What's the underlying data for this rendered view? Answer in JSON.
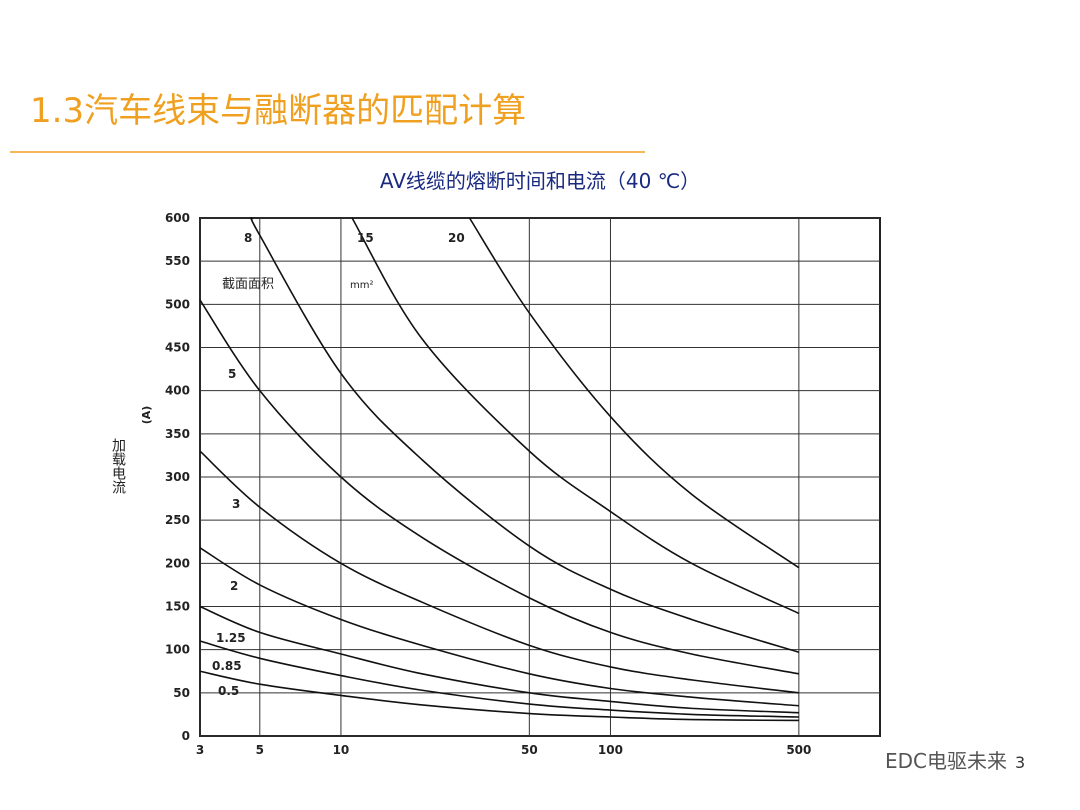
{
  "header": {
    "title": "1.3汽车线束与融断器的匹配计算"
  },
  "chart_data": {
    "type": "line",
    "title": "AV线缆的熔断时间和电流（40 ℃）",
    "y_label": "加载电流",
    "y_unit": "(A)",
    "legend_title": "截面面积",
    "legend_unit": "mm²",
    "log_x": true,
    "grid": true,
    "xlim": [
      3,
      1000
    ],
    "ylim": [
      0,
      600
    ],
    "xticks": [
      3,
      5,
      10,
      50,
      100,
      500
    ],
    "yticks": [
      0,
      50,
      100,
      150,
      200,
      250,
      300,
      350,
      400,
      450,
      500,
      550,
      600
    ],
    "series": [
      {
        "name": "0.5",
        "color": "#111111",
        "x": [
          3,
          5,
          10,
          20,
          50,
          100,
          200,
          500
        ],
        "values": [
          75,
          60,
          47,
          36,
          26,
          22,
          19,
          18
        ]
      },
      {
        "name": "0.85",
        "color": "#111111",
        "x": [
          3,
          5,
          10,
          20,
          50,
          100,
          200,
          500
        ],
        "values": [
          110,
          90,
          70,
          53,
          37,
          30,
          25,
          22
        ]
      },
      {
        "name": "1.25",
        "color": "#111111",
        "x": [
          3,
          5,
          10,
          20,
          50,
          100,
          200,
          500
        ],
        "values": [
          150,
          120,
          95,
          72,
          50,
          40,
          32,
          27
        ]
      },
      {
        "name": "2",
        "color": "#111111",
        "x": [
          3,
          5,
          10,
          20,
          50,
          100,
          200,
          500
        ],
        "values": [
          218,
          175,
          135,
          105,
          72,
          55,
          45,
          35
        ]
      },
      {
        "name": "3",
        "color": "#111111",
        "x": [
          3,
          5,
          10,
          20,
          50,
          100,
          200,
          500
        ],
        "values": [
          330,
          265,
          200,
          155,
          105,
          80,
          65,
          50
        ]
      },
      {
        "name": "5",
        "color": "#111111",
        "x": [
          3,
          5,
          10,
          20,
          50,
          100,
          200,
          500
        ],
        "values": [
          505,
          400,
          300,
          230,
          160,
          120,
          95,
          72
        ]
      },
      {
        "name": "8",
        "color": "#111111",
        "x": [
          4.7,
          5,
          10,
          20,
          50,
          100,
          200,
          500
        ],
        "values": [
          600,
          580,
          420,
          320,
          220,
          170,
          135,
          97
        ]
      },
      {
        "name": "15",
        "color": "#111111",
        "x": [
          11,
          20,
          50,
          100,
          200,
          500
        ],
        "values": [
          600,
          460,
          330,
          260,
          200,
          142
        ]
      },
      {
        "name": "20",
        "color": "#111111",
        "x": [
          30,
          50,
          100,
          200,
          500
        ],
        "values": [
          600,
          490,
          370,
          280,
          195
        ]
      }
    ]
  },
  "footer": {
    "watermark": "EDC电驱未来",
    "page": "3"
  }
}
